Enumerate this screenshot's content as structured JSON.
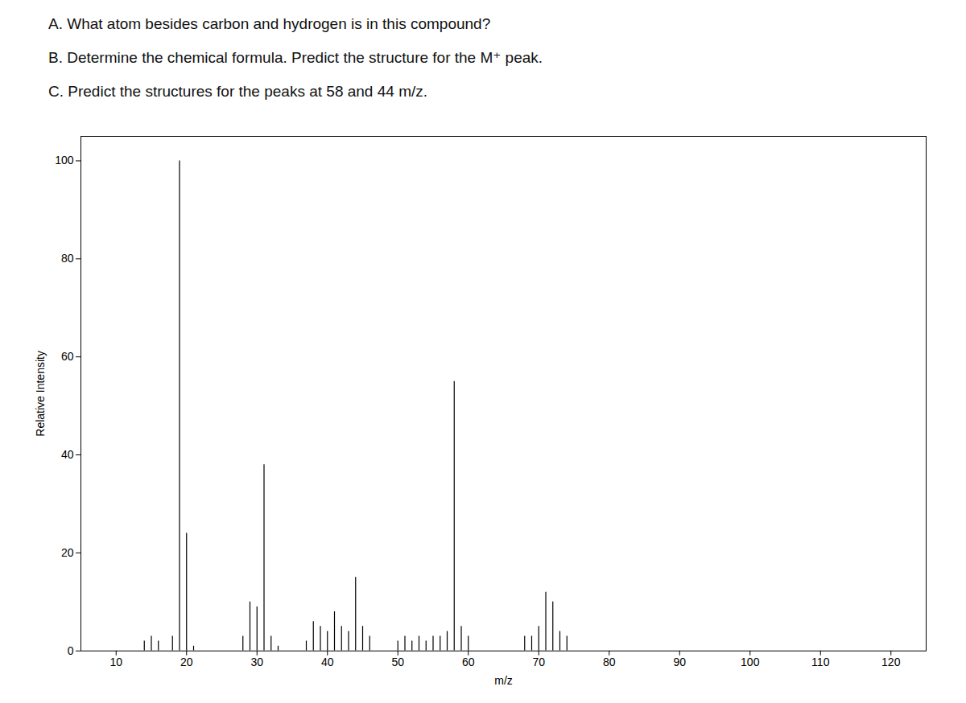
{
  "chart_data": {
    "type": "stem",
    "annotations": [
      "A.  What atom besides carbon and hydrogen is in this compound?",
      "B.  Determine the chemical formula. Predict the structure for the M⁺ peak.",
      "C.  Predict the structures for the peaks at 58 and 44 m/z."
    ],
    "xlabel": "m/z",
    "ylabel": "Relative Intensity",
    "x": [
      14,
      15,
      16,
      18,
      19,
      20,
      21,
      28,
      29,
      30,
      31,
      32,
      33,
      37,
      38,
      39,
      40,
      41,
      42,
      43,
      44,
      45,
      46,
      50,
      51,
      52,
      53,
      54,
      55,
      56,
      57,
      58,
      59,
      60,
      68,
      69,
      70,
      71,
      72,
      73,
      74
    ],
    "values": [
      2,
      3,
      2,
      3,
      100,
      24,
      1,
      3,
      10,
      9,
      38,
      3,
      1,
      2,
      6,
      5,
      4,
      8,
      5,
      4,
      15,
      5,
      3,
      2,
      3,
      2,
      3,
      2,
      3,
      3,
      4,
      55,
      5,
      3,
      3,
      3,
      5,
      12,
      10,
      4,
      3
    ],
    "color": "#000000",
    "xlim": [
      5,
      125
    ],
    "ylim": [
      0,
      105
    ],
    "xticks": [
      10,
      20,
      30,
      40,
      50,
      60,
      70,
      80,
      90,
      100,
      110,
      120
    ],
    "yticks": [
      0,
      20,
      40,
      60,
      80,
      100
    ],
    "grid": false
  }
}
